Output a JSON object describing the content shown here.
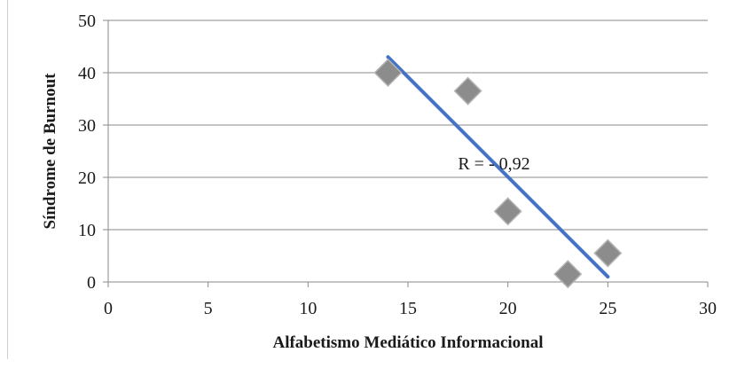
{
  "chart_data": {
    "type": "scatter",
    "xlabel": "Alfabetismo Mediático Informacional",
    "ylabel": "Síndrome de Burnout",
    "xlim": [
      0,
      30
    ],
    "ylim": [
      0,
      50
    ],
    "xticks": [
      0,
      5,
      10,
      15,
      20,
      25,
      30
    ],
    "yticks": [
      0,
      10,
      20,
      30,
      40,
      50
    ],
    "grid": "horizontal",
    "series": [
      {
        "marker": "diamond",
        "color": "#8c8c8c",
        "points": [
          {
            "x": 14,
            "y": 40
          },
          {
            "x": 18,
            "y": 36.5
          },
          {
            "x": 20,
            "y": 13.5
          },
          {
            "x": 23,
            "y": 1.5
          },
          {
            "x": 25,
            "y": 5.5
          }
        ]
      }
    ],
    "trendline": {
      "type": "linear",
      "color": "#4472c4",
      "from": {
        "x": 14,
        "y": 43
      },
      "to": {
        "x": 25,
        "y": 1
      }
    },
    "annotation": {
      "text": "R = - 0,92",
      "x": 17.5,
      "y": 21.5
    }
  }
}
